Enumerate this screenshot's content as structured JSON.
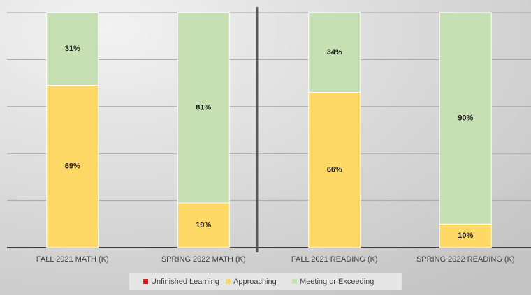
{
  "chart_data": {
    "type": "stacked_bar",
    "categories": [
      "FALL 2021 MATH (K)",
      "SPRING 2022 MATH (K)",
      "FALL 2021 READING (K)",
      "SPRING 2022 READING (K)"
    ],
    "series": [
      {
        "name": "Unfinished Learning",
        "color": "#e31a1c",
        "values": [
          0,
          0,
          0,
          0
        ]
      },
      {
        "name": "Approaching",
        "color": "#ffd966",
        "values": [
          69,
          19,
          66,
          10
        ],
        "value_labels": [
          "69%",
          "19%",
          "66%",
          "10%"
        ]
      },
      {
        "name": "Meeting or Exceeding",
        "color": "#c6e0b4",
        "values": [
          31,
          81,
          34,
          90
        ],
        "value_labels": [
          "31%",
          "81%",
          "34%",
          "90%"
        ]
      }
    ],
    "ylim": [
      0,
      100
    ],
    "yticks": [
      0,
      20,
      40,
      60,
      80,
      100
    ],
    "grid": true,
    "legend": "bottom"
  }
}
